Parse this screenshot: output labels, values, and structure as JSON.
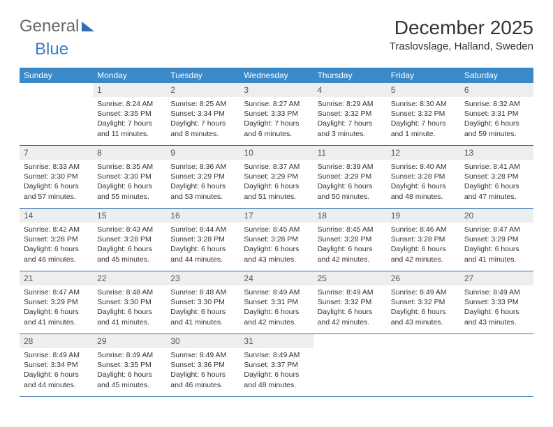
{
  "logo": {
    "part1": "General",
    "part2": "Blue"
  },
  "title": {
    "month": "December 2025",
    "location": "Traslovslage, Halland, Sweden"
  },
  "colors": {
    "header_bg": "#3a89c9",
    "header_fg": "#ffffff",
    "daynum_bg": "#eceef0",
    "rule": "#2f6fb0",
    "logo_blue": "#3a7fc4",
    "text": "#333333"
  },
  "daysOfWeek": [
    "Sunday",
    "Monday",
    "Tuesday",
    "Wednesday",
    "Thursday",
    "Friday",
    "Saturday"
  ],
  "weeks": [
    {
      "nums": [
        "",
        "1",
        "2",
        "3",
        "4",
        "5",
        "6"
      ],
      "cells": [
        "",
        "Sunrise: 8:24 AM\nSunset: 3:35 PM\nDaylight: 7 hours and 11 minutes.",
        "Sunrise: 8:25 AM\nSunset: 3:34 PM\nDaylight: 7 hours and 8 minutes.",
        "Sunrise: 8:27 AM\nSunset: 3:33 PM\nDaylight: 7 hours and 6 minutes.",
        "Sunrise: 8:29 AM\nSunset: 3:32 PM\nDaylight: 7 hours and 3 minutes.",
        "Sunrise: 8:30 AM\nSunset: 3:32 PM\nDaylight: 7 hours and 1 minute.",
        "Sunrise: 8:32 AM\nSunset: 3:31 PM\nDaylight: 6 hours and 59 minutes."
      ]
    },
    {
      "nums": [
        "7",
        "8",
        "9",
        "10",
        "11",
        "12",
        "13"
      ],
      "cells": [
        "Sunrise: 8:33 AM\nSunset: 3:30 PM\nDaylight: 6 hours and 57 minutes.",
        "Sunrise: 8:35 AM\nSunset: 3:30 PM\nDaylight: 6 hours and 55 minutes.",
        "Sunrise: 8:36 AM\nSunset: 3:29 PM\nDaylight: 6 hours and 53 minutes.",
        "Sunrise: 8:37 AM\nSunset: 3:29 PM\nDaylight: 6 hours and 51 minutes.",
        "Sunrise: 8:39 AM\nSunset: 3:29 PM\nDaylight: 6 hours and 50 minutes.",
        "Sunrise: 8:40 AM\nSunset: 3:28 PM\nDaylight: 6 hours and 48 minutes.",
        "Sunrise: 8:41 AM\nSunset: 3:28 PM\nDaylight: 6 hours and 47 minutes."
      ]
    },
    {
      "nums": [
        "14",
        "15",
        "16",
        "17",
        "18",
        "19",
        "20"
      ],
      "cells": [
        "Sunrise: 8:42 AM\nSunset: 3:28 PM\nDaylight: 6 hours and 46 minutes.",
        "Sunrise: 8:43 AM\nSunset: 3:28 PM\nDaylight: 6 hours and 45 minutes.",
        "Sunrise: 8:44 AM\nSunset: 3:28 PM\nDaylight: 6 hours and 44 minutes.",
        "Sunrise: 8:45 AM\nSunset: 3:28 PM\nDaylight: 6 hours and 43 minutes.",
        "Sunrise: 8:45 AM\nSunset: 3:28 PM\nDaylight: 6 hours and 42 minutes.",
        "Sunrise: 8:46 AM\nSunset: 3:28 PM\nDaylight: 6 hours and 42 minutes.",
        "Sunrise: 8:47 AM\nSunset: 3:29 PM\nDaylight: 6 hours and 41 minutes."
      ]
    },
    {
      "nums": [
        "21",
        "22",
        "23",
        "24",
        "25",
        "26",
        "27"
      ],
      "cells": [
        "Sunrise: 8:47 AM\nSunset: 3:29 PM\nDaylight: 6 hours and 41 minutes.",
        "Sunrise: 8:48 AM\nSunset: 3:30 PM\nDaylight: 6 hours and 41 minutes.",
        "Sunrise: 8:48 AM\nSunset: 3:30 PM\nDaylight: 6 hours and 41 minutes.",
        "Sunrise: 8:49 AM\nSunset: 3:31 PM\nDaylight: 6 hours and 42 minutes.",
        "Sunrise: 8:49 AM\nSunset: 3:32 PM\nDaylight: 6 hours and 42 minutes.",
        "Sunrise: 8:49 AM\nSunset: 3:32 PM\nDaylight: 6 hours and 43 minutes.",
        "Sunrise: 8:49 AM\nSunset: 3:33 PM\nDaylight: 6 hours and 43 minutes."
      ]
    },
    {
      "nums": [
        "28",
        "29",
        "30",
        "31",
        "",
        "",
        ""
      ],
      "cells": [
        "Sunrise: 8:49 AM\nSunset: 3:34 PM\nDaylight: 6 hours and 44 minutes.",
        "Sunrise: 8:49 AM\nSunset: 3:35 PM\nDaylight: 6 hours and 45 minutes.",
        "Sunrise: 8:49 AM\nSunset: 3:36 PM\nDaylight: 6 hours and 46 minutes.",
        "Sunrise: 8:49 AM\nSunset: 3:37 PM\nDaylight: 6 hours and 48 minutes.",
        "",
        "",
        ""
      ]
    }
  ]
}
